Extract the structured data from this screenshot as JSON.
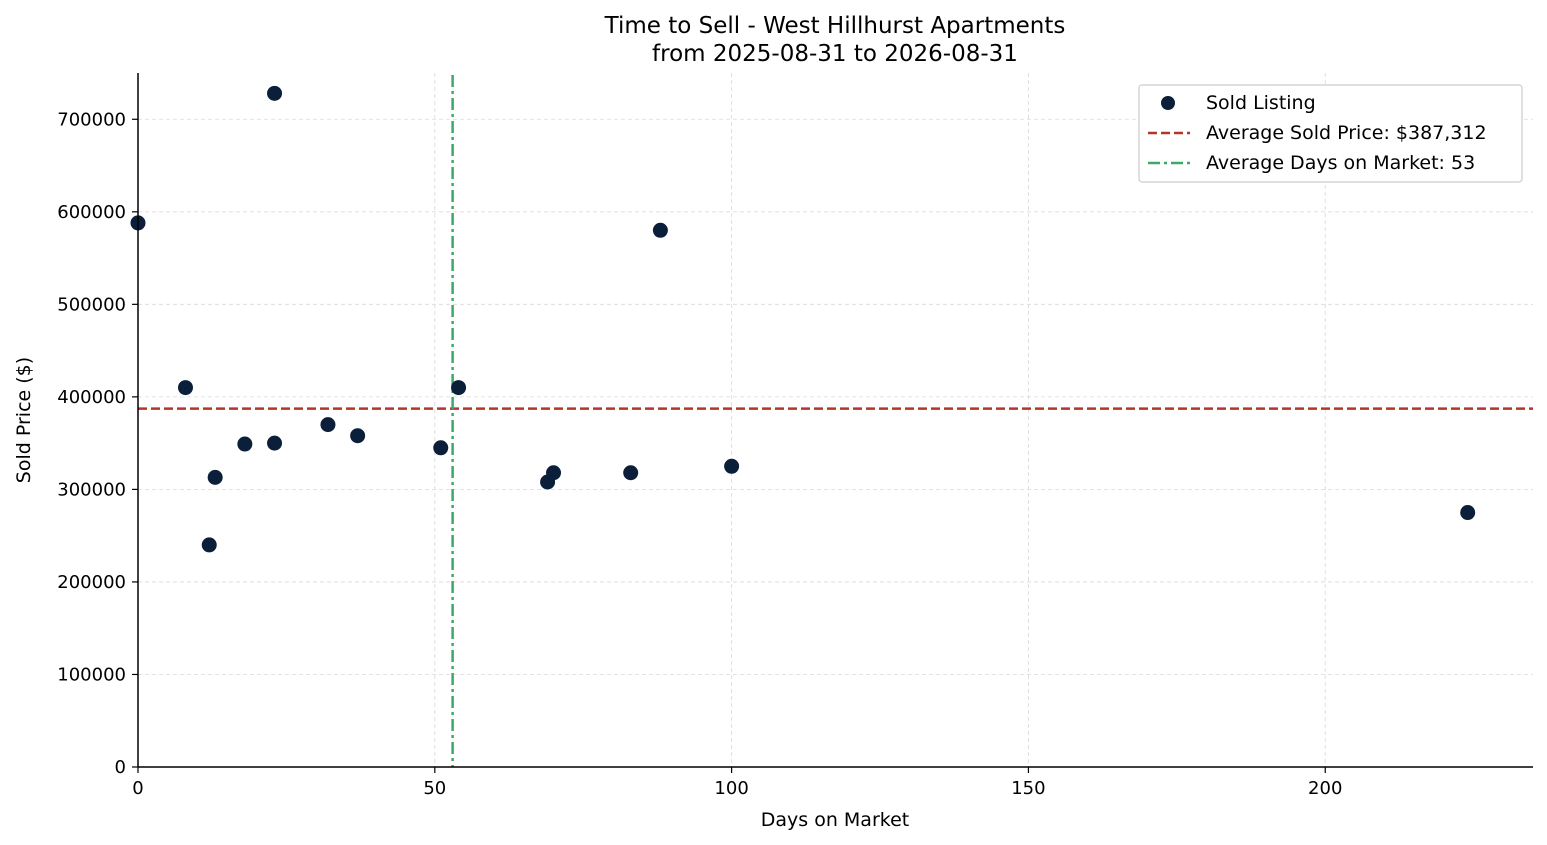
{
  "chart_data": {
    "type": "scatter",
    "title": "Time to Sell - West Hillhurst Apartments",
    "subtitle": "from 2025-08-31 to 2026-08-31",
    "xlabel": "Days on Market",
    "ylabel": "Sold Price ($)",
    "xlim": [
      0,
      235
    ],
    "ylim": [
      0,
      750000
    ],
    "xticks": [
      0,
      50,
      100,
      150,
      200
    ],
    "yticks": [
      0,
      100000,
      200000,
      300000,
      400000,
      500000,
      600000,
      700000
    ],
    "grid": true,
    "legend_position": "top-right",
    "series": [
      {
        "name": "Sold Listing",
        "color": "#0b1f3a",
        "x": [
          0,
          8,
          12,
          13,
          18,
          23,
          23,
          32,
          37,
          51,
          54,
          69,
          70,
          83,
          88,
          100,
          224
        ],
        "y": [
          588000,
          410000,
          240000,
          313000,
          349000,
          350000,
          728000,
          370000,
          358000,
          345000,
          410000,
          308000,
          318000,
          318000,
          580000,
          325000,
          275000
        ]
      }
    ],
    "reference_lines": [
      {
        "name": "Average Sold Price: $387,312",
        "orientation": "horizontal",
        "value": 387312,
        "color": "#b5352a",
        "style": "dashed"
      },
      {
        "name": "Average Days on Market: 53",
        "orientation": "vertical",
        "value": 53,
        "color": "#3aaa6a",
        "style": "dashdot"
      }
    ]
  }
}
